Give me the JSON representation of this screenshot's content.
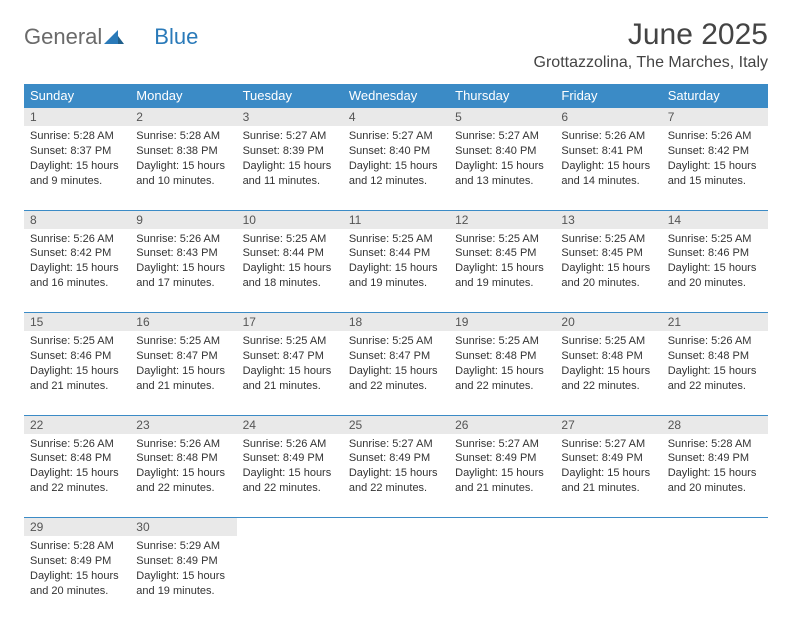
{
  "logo": {
    "first": "General",
    "second": "Blue"
  },
  "title": {
    "month": "June 2025",
    "location": "Grottazzolina, The Marches, Italy"
  },
  "colors": {
    "header_bg": "#3b8bc6",
    "header_text": "#ffffff",
    "daynum_bg": "#e9e9e9",
    "border": "#3b8bc6",
    "logo_accent": "#2a7ab9"
  },
  "weekdays": [
    "Sunday",
    "Monday",
    "Tuesday",
    "Wednesday",
    "Thursday",
    "Friday",
    "Saturday"
  ],
  "days": [
    {
      "n": "1",
      "sunrise": "Sunrise: 5:28 AM",
      "sunset": "Sunset: 8:37 PM",
      "daylight": "Daylight: 15 hours and 9 minutes."
    },
    {
      "n": "2",
      "sunrise": "Sunrise: 5:28 AM",
      "sunset": "Sunset: 8:38 PM",
      "daylight": "Daylight: 15 hours and 10 minutes."
    },
    {
      "n": "3",
      "sunrise": "Sunrise: 5:27 AM",
      "sunset": "Sunset: 8:39 PM",
      "daylight": "Daylight: 15 hours and 11 minutes."
    },
    {
      "n": "4",
      "sunrise": "Sunrise: 5:27 AM",
      "sunset": "Sunset: 8:40 PM",
      "daylight": "Daylight: 15 hours and 12 minutes."
    },
    {
      "n": "5",
      "sunrise": "Sunrise: 5:27 AM",
      "sunset": "Sunset: 8:40 PM",
      "daylight": "Daylight: 15 hours and 13 minutes."
    },
    {
      "n": "6",
      "sunrise": "Sunrise: 5:26 AM",
      "sunset": "Sunset: 8:41 PM",
      "daylight": "Daylight: 15 hours and 14 minutes."
    },
    {
      "n": "7",
      "sunrise": "Sunrise: 5:26 AM",
      "sunset": "Sunset: 8:42 PM",
      "daylight": "Daylight: 15 hours and 15 minutes."
    },
    {
      "n": "8",
      "sunrise": "Sunrise: 5:26 AM",
      "sunset": "Sunset: 8:42 PM",
      "daylight": "Daylight: 15 hours and 16 minutes."
    },
    {
      "n": "9",
      "sunrise": "Sunrise: 5:26 AM",
      "sunset": "Sunset: 8:43 PM",
      "daylight": "Daylight: 15 hours and 17 minutes."
    },
    {
      "n": "10",
      "sunrise": "Sunrise: 5:25 AM",
      "sunset": "Sunset: 8:44 PM",
      "daylight": "Daylight: 15 hours and 18 minutes."
    },
    {
      "n": "11",
      "sunrise": "Sunrise: 5:25 AM",
      "sunset": "Sunset: 8:44 PM",
      "daylight": "Daylight: 15 hours and 19 minutes."
    },
    {
      "n": "12",
      "sunrise": "Sunrise: 5:25 AM",
      "sunset": "Sunset: 8:45 PM",
      "daylight": "Daylight: 15 hours and 19 minutes."
    },
    {
      "n": "13",
      "sunrise": "Sunrise: 5:25 AM",
      "sunset": "Sunset: 8:45 PM",
      "daylight": "Daylight: 15 hours and 20 minutes."
    },
    {
      "n": "14",
      "sunrise": "Sunrise: 5:25 AM",
      "sunset": "Sunset: 8:46 PM",
      "daylight": "Daylight: 15 hours and 20 minutes."
    },
    {
      "n": "15",
      "sunrise": "Sunrise: 5:25 AM",
      "sunset": "Sunset: 8:46 PM",
      "daylight": "Daylight: 15 hours and 21 minutes."
    },
    {
      "n": "16",
      "sunrise": "Sunrise: 5:25 AM",
      "sunset": "Sunset: 8:47 PM",
      "daylight": "Daylight: 15 hours and 21 minutes."
    },
    {
      "n": "17",
      "sunrise": "Sunrise: 5:25 AM",
      "sunset": "Sunset: 8:47 PM",
      "daylight": "Daylight: 15 hours and 21 minutes."
    },
    {
      "n": "18",
      "sunrise": "Sunrise: 5:25 AM",
      "sunset": "Sunset: 8:47 PM",
      "daylight": "Daylight: 15 hours and 22 minutes."
    },
    {
      "n": "19",
      "sunrise": "Sunrise: 5:25 AM",
      "sunset": "Sunset: 8:48 PM",
      "daylight": "Daylight: 15 hours and 22 minutes."
    },
    {
      "n": "20",
      "sunrise": "Sunrise: 5:25 AM",
      "sunset": "Sunset: 8:48 PM",
      "daylight": "Daylight: 15 hours and 22 minutes."
    },
    {
      "n": "21",
      "sunrise": "Sunrise: 5:26 AM",
      "sunset": "Sunset: 8:48 PM",
      "daylight": "Daylight: 15 hours and 22 minutes."
    },
    {
      "n": "22",
      "sunrise": "Sunrise: 5:26 AM",
      "sunset": "Sunset: 8:48 PM",
      "daylight": "Daylight: 15 hours and 22 minutes."
    },
    {
      "n": "23",
      "sunrise": "Sunrise: 5:26 AM",
      "sunset": "Sunset: 8:48 PM",
      "daylight": "Daylight: 15 hours and 22 minutes."
    },
    {
      "n": "24",
      "sunrise": "Sunrise: 5:26 AM",
      "sunset": "Sunset: 8:49 PM",
      "daylight": "Daylight: 15 hours and 22 minutes."
    },
    {
      "n": "25",
      "sunrise": "Sunrise: 5:27 AM",
      "sunset": "Sunset: 8:49 PM",
      "daylight": "Daylight: 15 hours and 22 minutes."
    },
    {
      "n": "26",
      "sunrise": "Sunrise: 5:27 AM",
      "sunset": "Sunset: 8:49 PM",
      "daylight": "Daylight: 15 hours and 21 minutes."
    },
    {
      "n": "27",
      "sunrise": "Sunrise: 5:27 AM",
      "sunset": "Sunset: 8:49 PM",
      "daylight": "Daylight: 15 hours and 21 minutes."
    },
    {
      "n": "28",
      "sunrise": "Sunrise: 5:28 AM",
      "sunset": "Sunset: 8:49 PM",
      "daylight": "Daylight: 15 hours and 20 minutes."
    },
    {
      "n": "29",
      "sunrise": "Sunrise: 5:28 AM",
      "sunset": "Sunset: 8:49 PM",
      "daylight": "Daylight: 15 hours and 20 minutes."
    },
    {
      "n": "30",
      "sunrise": "Sunrise: 5:29 AM",
      "sunset": "Sunset: 8:49 PM",
      "daylight": "Daylight: 15 hours and 19 minutes."
    }
  ]
}
